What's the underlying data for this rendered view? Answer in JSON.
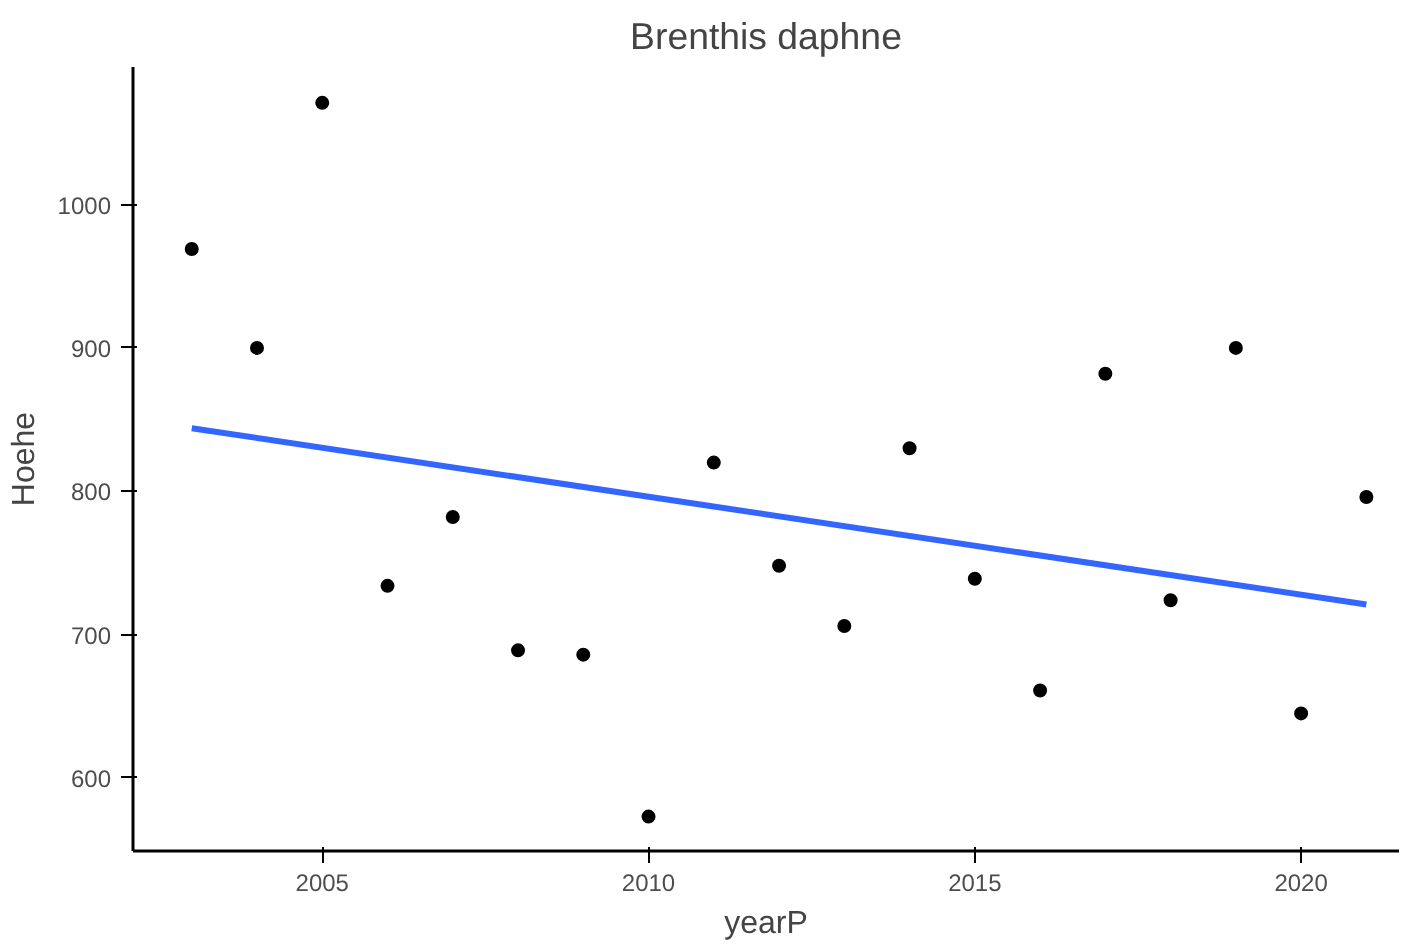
{
  "chart_data": {
    "type": "scatter",
    "title": "Brenthis daphne",
    "xlabel": "yearP",
    "ylabel": "Hoehe",
    "x": [
      2003,
      2004,
      2005,
      2006,
      2007,
      2008,
      2009,
      2010,
      2011,
      2012,
      2013,
      2014,
      2015,
      2016,
      2017,
      2018,
      2019,
      2020,
      2021
    ],
    "series": [
      {
        "color": "#000000",
        "values": [
          969,
          900,
          1071,
          734,
          782,
          689,
          686,
          573,
          820,
          748,
          706,
          830,
          739,
          661,
          882,
          724,
          900,
          645,
          796
        ]
      },
      {
        "type": "line",
        "marker": "none",
        "color": "#3366ff",
        "x": [
          2003,
          2021
        ],
        "values": [
          844,
          721
        ]
      }
    ],
    "xlim": [
      2002.1,
      2021.5
    ],
    "ylim": [
      549,
      1096
    ],
    "xticks": [
      2005,
      2010,
      2015,
      2020
    ],
    "yticks": [
      600,
      700,
      800,
      900,
      1000
    ],
    "grid": false,
    "marker": "circle"
  }
}
